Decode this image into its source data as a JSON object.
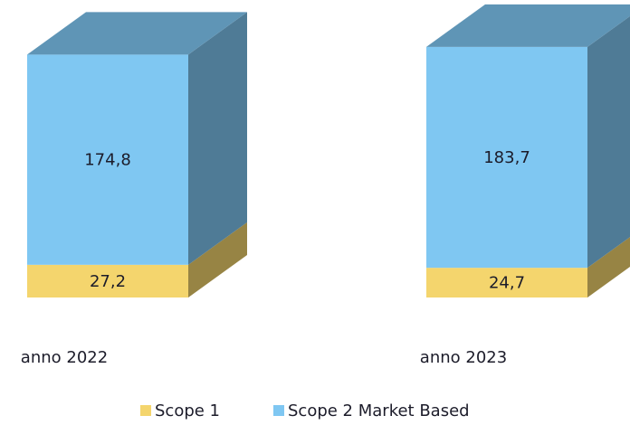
{
  "chart_data": {
    "type": "bar3d_stacked",
    "categories": [
      "anno 2022",
      "anno 2023"
    ],
    "series": [
      {
        "name": "Scope 1",
        "color": "#f4d56d",
        "values": [
          27.2,
          24.7
        ],
        "value_labels": [
          "27,2",
          "24,7"
        ]
      },
      {
        "name": "Scope 2 Market Based",
        "color": "#7fc7f2",
        "values": [
          174.8,
          183.7
        ],
        "value_labels": [
          "174,8",
          "183,7"
        ]
      }
    ]
  }
}
